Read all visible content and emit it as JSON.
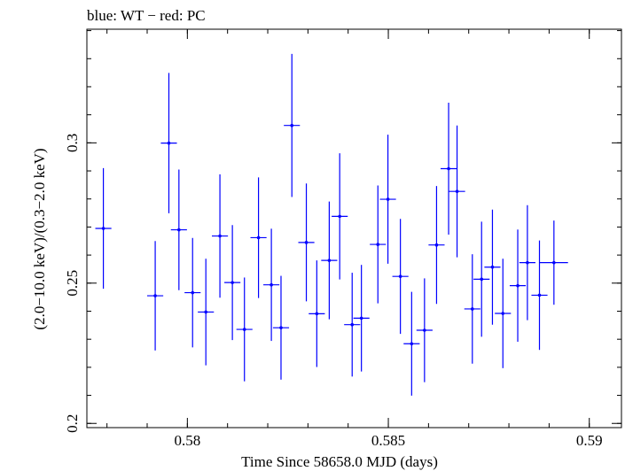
{
  "chart_data": {
    "type": "scatter",
    "title": "blue: WT − red: PC",
    "xlabel": "Time Since 58658.0 MJD (days)",
    "ylabel": "(2.0−10.0 keV)/(0.3−2.0 keV)",
    "xlim": [
      0.5775,
      0.5908
    ],
    "ylim": [
      0.1985,
      0.3405
    ],
    "x_ticks": [
      {
        "value": 0.58,
        "label": "0.58"
      },
      {
        "value": 0.585,
        "label": "0.585"
      },
      {
        "value": 0.59,
        "label": "0.59"
      }
    ],
    "y_ticks": [
      {
        "value": 0.2,
        "label": "0.2"
      },
      {
        "value": 0.25,
        "label": "0.25"
      },
      {
        "value": 0.3,
        "label": "0.3"
      }
    ],
    "x_minor_step": 0.001,
    "y_minor_step": 0.01,
    "grid": false,
    "series": [
      {
        "color": "#0000ff",
        "points": [
          {
            "x": 0.57791,
            "xerr": 0.0002,
            "y": 0.2695,
            "yerr": 0.0215
          },
          {
            "x": 0.5792,
            "xerr": 0.0002,
            "y": 0.2455,
            "yerr": 0.0195
          },
          {
            "x": 0.57954,
            "xerr": 0.0002,
            "y": 0.2999,
            "yerr": 0.025
          },
          {
            "x": 0.57979,
            "xerr": 0.0002,
            "y": 0.269,
            "yerr": 0.0215
          },
          {
            "x": 0.58013,
            "xerr": 0.0002,
            "y": 0.2466,
            "yerr": 0.0195
          },
          {
            "x": 0.58046,
            "xerr": 0.0002,
            "y": 0.2397,
            "yerr": 0.019
          },
          {
            "x": 0.58081,
            "xerr": 0.0002,
            "y": 0.2668,
            "yerr": 0.022
          },
          {
            "x": 0.58112,
            "xerr": 0.0002,
            "y": 0.2502,
            "yerr": 0.0205
          },
          {
            "x": 0.58142,
            "xerr": 0.0002,
            "y": 0.2335,
            "yerr": 0.0185
          },
          {
            "x": 0.58177,
            "xerr": 0.0002,
            "y": 0.2662,
            "yerr": 0.0215
          },
          {
            "x": 0.58209,
            "xerr": 0.0002,
            "y": 0.2494,
            "yerr": 0.02
          },
          {
            "x": 0.58233,
            "xerr": 0.0002,
            "y": 0.2341,
            "yerr": 0.0185
          },
          {
            "x": 0.5826,
            "xerr": 0.0002,
            "y": 0.3062,
            "yerr": 0.0255
          },
          {
            "x": 0.58296,
            "xerr": 0.0002,
            "y": 0.2645,
            "yerr": 0.021
          },
          {
            "x": 0.58322,
            "xerr": 0.0002,
            "y": 0.2391,
            "yerr": 0.019
          },
          {
            "x": 0.58353,
            "xerr": 0.0002,
            "y": 0.2581,
            "yerr": 0.021
          },
          {
            "x": 0.58379,
            "xerr": 0.0002,
            "y": 0.2738,
            "yerr": 0.0225
          },
          {
            "x": 0.5841,
            "xerr": 0.0002,
            "y": 0.2352,
            "yerr": 0.0185
          },
          {
            "x": 0.58433,
            "xerr": 0.0002,
            "y": 0.2375,
            "yerr": 0.019
          },
          {
            "x": 0.58474,
            "xerr": 0.0002,
            "y": 0.2638,
            "yerr": 0.021
          },
          {
            "x": 0.58499,
            "xerr": 0.0002,
            "y": 0.2799,
            "yerr": 0.023
          },
          {
            "x": 0.5853,
            "xerr": 0.0002,
            "y": 0.2524,
            "yerr": 0.0205
          },
          {
            "x": 0.58558,
            "xerr": 0.0002,
            "y": 0.2284,
            "yerr": 0.0185
          },
          {
            "x": 0.5859,
            "xerr": 0.0002,
            "y": 0.2332,
            "yerr": 0.0185
          },
          {
            "x": 0.5862,
            "xerr": 0.0002,
            "y": 0.2636,
            "yerr": 0.021
          },
          {
            "x": 0.5865,
            "xerr": 0.0002,
            "y": 0.2908,
            "yerr": 0.0235
          },
          {
            "x": 0.58671,
            "xerr": 0.0002,
            "y": 0.2827,
            "yerr": 0.0235
          },
          {
            "x": 0.58709,
            "xerr": 0.0002,
            "y": 0.2408,
            "yerr": 0.0195
          },
          {
            "x": 0.58732,
            "xerr": 0.0002,
            "y": 0.2514,
            "yerr": 0.0205
          },
          {
            "x": 0.58759,
            "xerr": 0.0002,
            "y": 0.2557,
            "yerr": 0.0205
          },
          {
            "x": 0.58785,
            "xerr": 0.0002,
            "y": 0.2392,
            "yerr": 0.0195
          },
          {
            "x": 0.58822,
            "xerr": 0.0002,
            "y": 0.2491,
            "yerr": 0.02
          },
          {
            "x": 0.58846,
            "xerr": 0.0002,
            "y": 0.2573,
            "yerr": 0.0205
          },
          {
            "x": 0.58876,
            "xerr": 0.0002,
            "y": 0.2457,
            "yerr": 0.0195
          },
          {
            "x": 0.58912,
            "xerr": 0.00035,
            "y": 0.2573,
            "yerr": 0.015
          }
        ]
      }
    ]
  }
}
